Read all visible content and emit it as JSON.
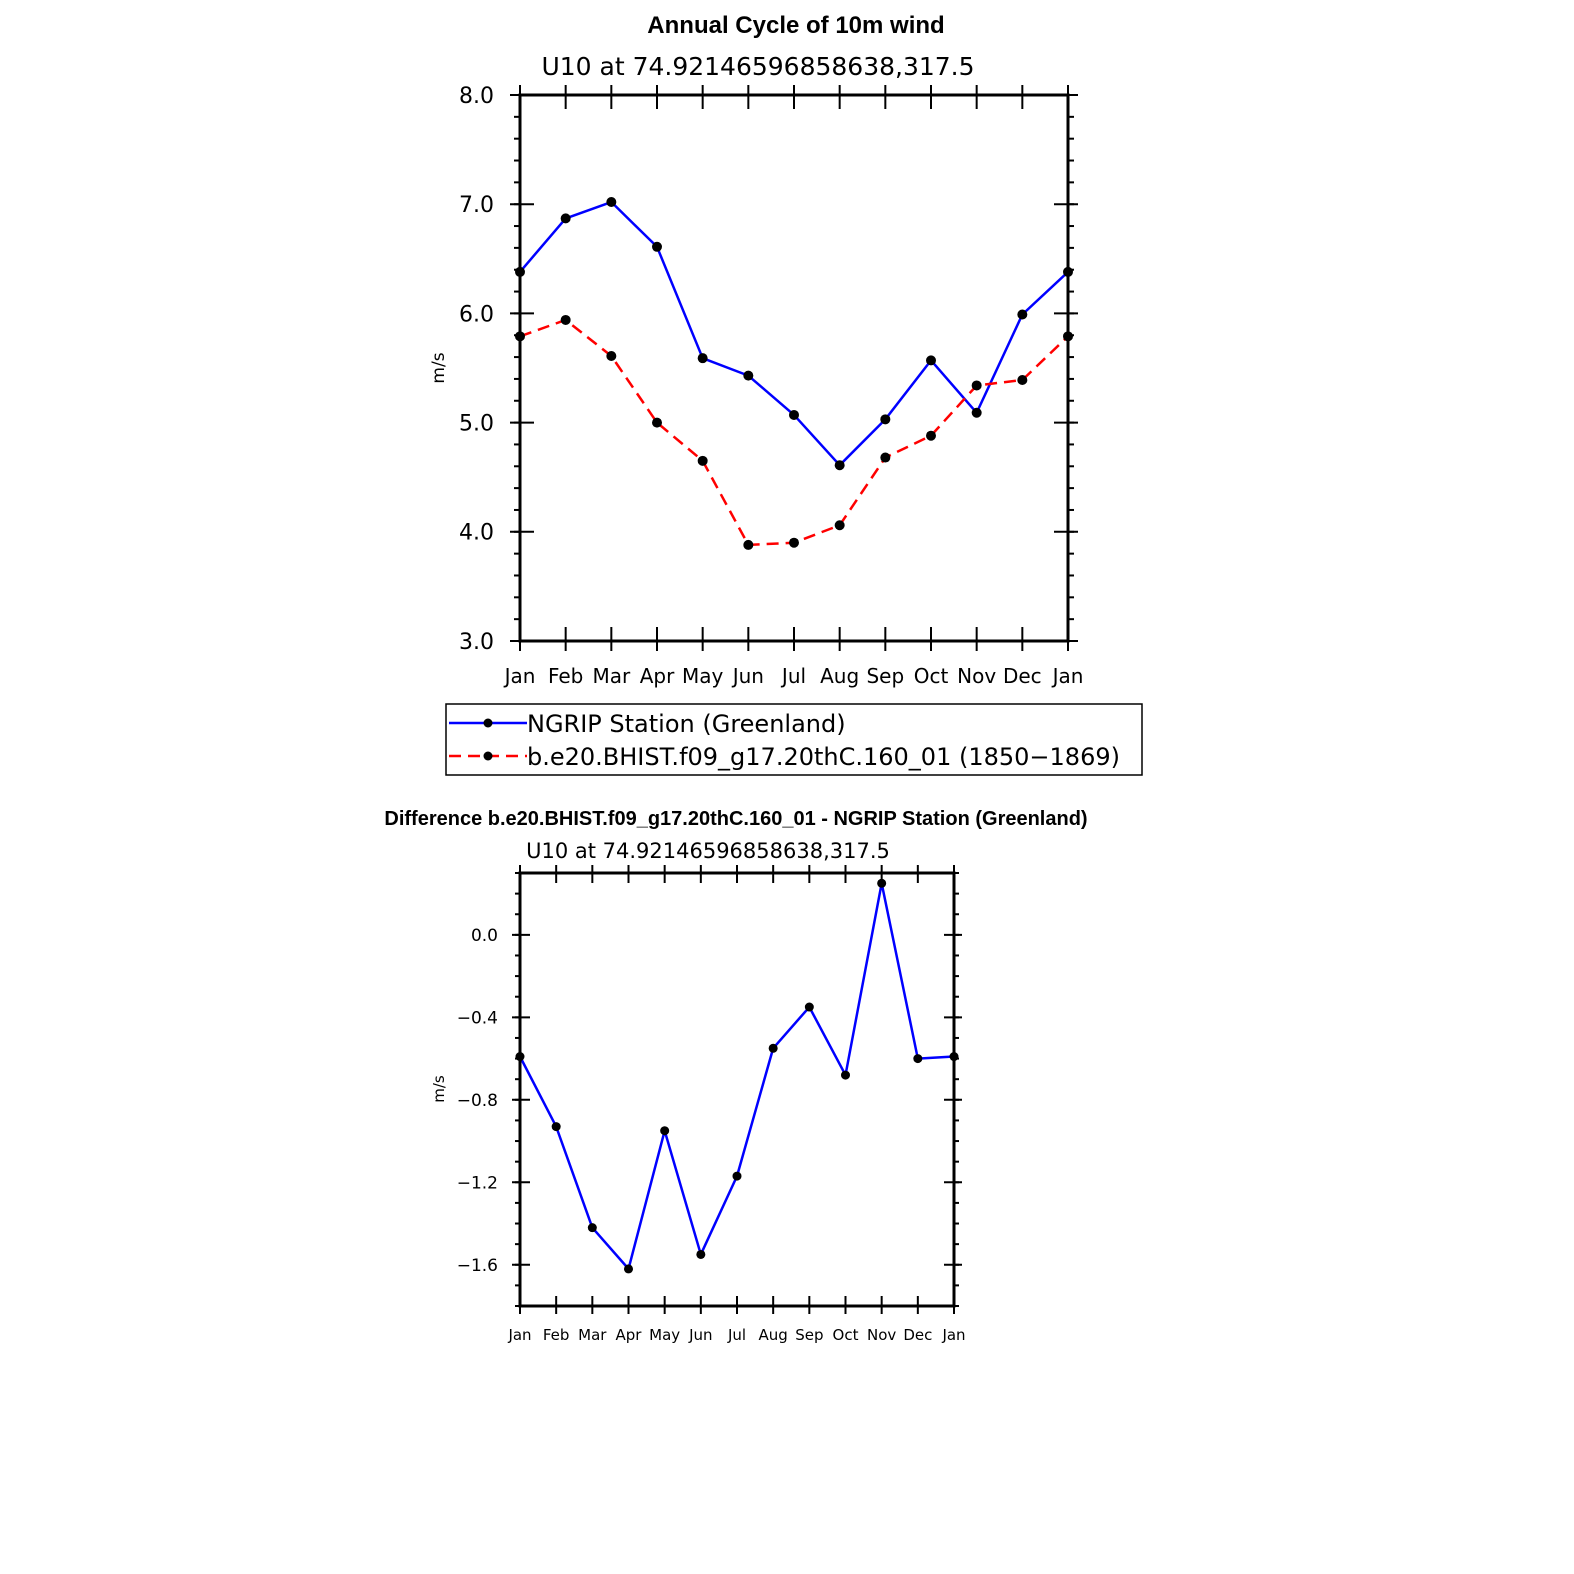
{
  "chart_data": [
    {
      "type": "line",
      "title": "Annual Cycle of 10m wind",
      "subtitle": "U10 at 74.92146596858638,317.5",
      "xlabel": "",
      "ylabel": "m/s",
      "categories": [
        "Jan",
        "Feb",
        "Mar",
        "Apr",
        "May",
        "Jun",
        "Jul",
        "Aug",
        "Sep",
        "Oct",
        "Nov",
        "Dec",
        "Jan"
      ],
      "ylim": [
        3.0,
        8.0
      ],
      "yticks": [
        "3.0",
        "4.0",
        "5.0",
        "6.0",
        "7.0",
        "8.0"
      ],
      "legend_position": "bottom",
      "series": [
        {
          "name": "NGRIP Station (Greenland)",
          "color": "#0000ff",
          "dash": "solid",
          "values": [
            6.38,
            6.87,
            7.02,
            6.61,
            5.59,
            5.43,
            5.07,
            4.61,
            5.03,
            5.57,
            5.09,
            5.99,
            6.38
          ]
        },
        {
          "name": "b.e20.BHIST.f09_g17.20thC.160_01 (1850−1869)",
          "color": "#ff0000",
          "dash": "dashed",
          "values": [
            5.79,
            5.94,
            5.61,
            5.0,
            4.65,
            3.88,
            3.9,
            4.06,
            4.68,
            4.88,
            5.34,
            5.39,
            5.79
          ]
        }
      ]
    },
    {
      "type": "line",
      "title": "Difference b.e20.BHIST.f09_g17.20thC.160_01 - NGRIP Station (Greenland)",
      "subtitle": "U10 at 74.92146596858638,317.5",
      "xlabel": "",
      "ylabel": "m/s",
      "categories": [
        "Jan",
        "Feb",
        "Mar",
        "Apr",
        "May",
        "Jun",
        "Jul",
        "Aug",
        "Sep",
        "Oct",
        "Nov",
        "Dec",
        "Jan"
      ],
      "ylim": [
        -1.8,
        0.3
      ],
      "yticks": [
        "−1.6",
        "−1.2",
        "−0.8",
        "−0.4",
        "0.0"
      ],
      "series": [
        {
          "name": "",
          "color": "#0000ff",
          "dash": "solid",
          "values": [
            -0.59,
            -0.93,
            -1.42,
            -1.62,
            -0.95,
            -1.55,
            -1.17,
            -0.55,
            -0.35,
            -0.68,
            0.25,
            -0.6,
            -0.59
          ]
        }
      ]
    }
  ]
}
